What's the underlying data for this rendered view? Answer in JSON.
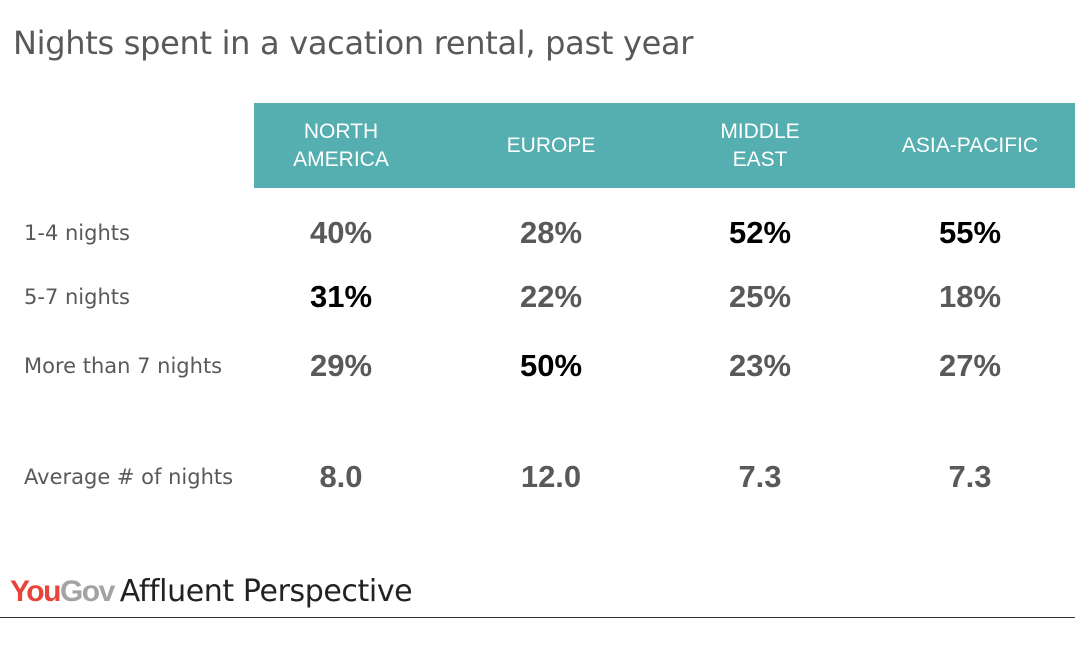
{
  "chart_data": {
    "type": "table",
    "title": "Nights spent in a vacation rental, past year",
    "columns": [
      "NORTH\nAMERICA",
      "EUROPE",
      "MIDDLE\nEAST",
      "ASIA-PACIFIC"
    ],
    "rows": [
      {
        "label": "1-4 nights",
        "values": [
          "40%",
          "28%",
          "52%",
          "55%"
        ],
        "highlight": [
          false,
          false,
          true,
          true
        ]
      },
      {
        "label": "5-7 nights",
        "values": [
          "31%",
          "22%",
          "25%",
          "18%"
        ],
        "highlight": [
          true,
          false,
          false,
          false
        ]
      },
      {
        "label": "More than 7 nights",
        "values": [
          "29%",
          "50%",
          "23%",
          "27%"
        ],
        "highlight": [
          false,
          true,
          false,
          false
        ]
      },
      {
        "label": "Average # of nights",
        "values": [
          "8.0",
          "12.0",
          "7.3",
          "7.3"
        ],
        "highlight": [
          false,
          false,
          false,
          false
        ]
      }
    ]
  },
  "footer": {
    "logo_you": "You",
    "logo_gov": "Gov",
    "tagline": "Affluent Perspective"
  },
  "colors": {
    "header_band": "#55aeaf",
    "text_muted": "#595959",
    "text_highlight": "#000000",
    "logo_red": "#e8443a",
    "logo_grey": "#a3a3a3"
  }
}
